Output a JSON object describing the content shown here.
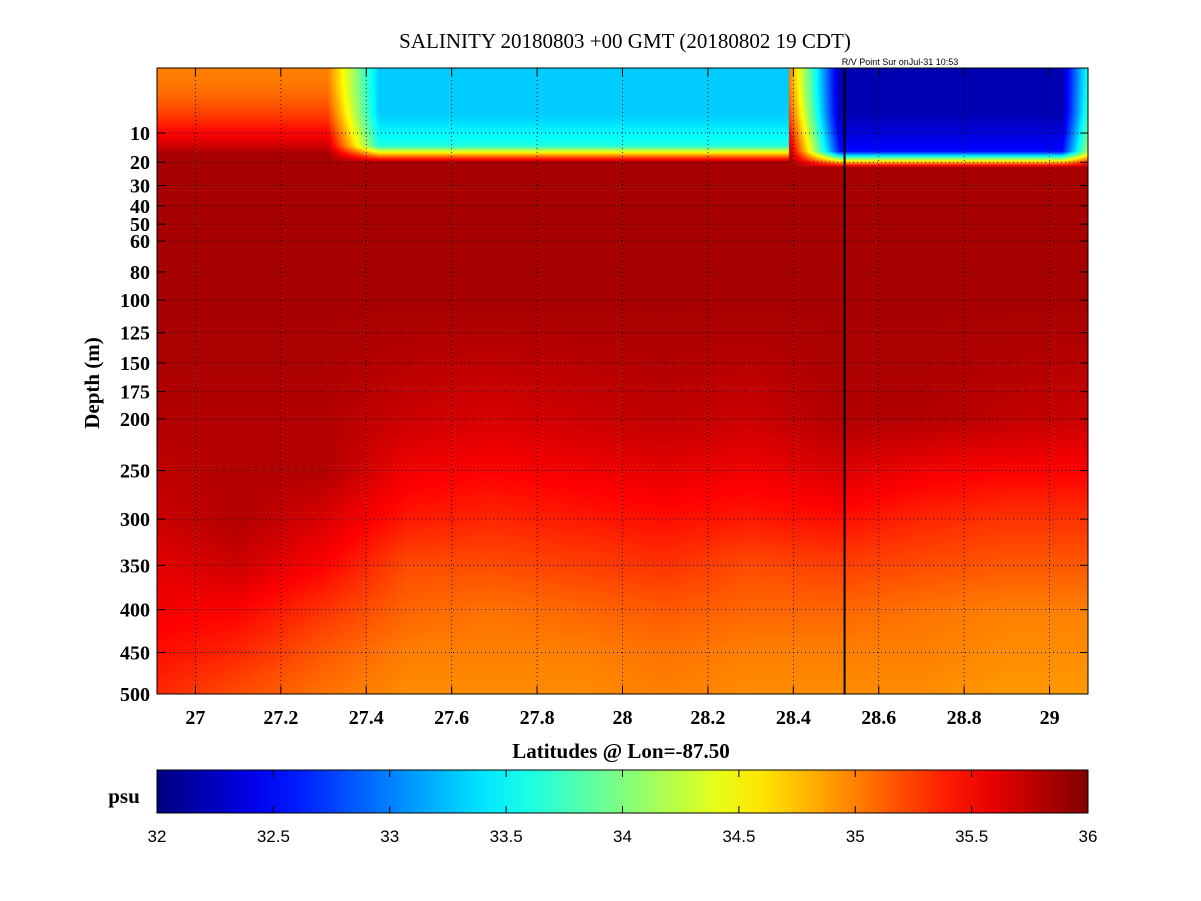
{
  "chart_data": {
    "type": "heatmap",
    "title": "SALINITY 20180803 +00 GMT (20180802 19 CDT)",
    "annotation": "R/V Point Sur onJul-31 10:53",
    "xlabel": "Latitudes @ Lon=-87.50",
    "ylabel": "Depth (m)",
    "xlim": [
      26.91,
      29.09
    ],
    "ylim": [
      0,
      500
    ],
    "x_ticks": [
      27,
      27.2,
      27.4,
      27.6,
      27.8,
      28,
      28.2,
      28.4,
      28.6,
      28.8,
      29
    ],
    "x_tick_labels": [
      "27",
      "27.2",
      "27.4",
      "27.6",
      "27.8",
      "28",
      "28.2",
      "28.4",
      "28.6",
      "28.8",
      "29"
    ],
    "y_ticks": [
      10,
      20,
      30,
      40,
      50,
      60,
      80,
      100,
      125,
      150,
      175,
      200,
      250,
      300,
      350,
      400,
      450,
      500
    ],
    "y_tick_labels": [
      "10",
      "20",
      "30",
      "40",
      "50",
      "60",
      "80",
      "100",
      "125",
      "150",
      "175",
      "200",
      "250",
      "300",
      "350",
      "400",
      "450",
      "500"
    ],
    "grid": true,
    "vertical_marker_latitude": 28.52,
    "colorbar": {
      "label": "psu",
      "range": [
        32,
        36
      ],
      "ticks": [
        32,
        32.5,
        33,
        33.5,
        34,
        34.5,
        35,
        35.5,
        36
      ],
      "tick_labels": [
        "32",
        "32.5",
        "33",
        "33.5",
        "34",
        "34.5",
        "35",
        "35.5",
        "36"
      ],
      "colormap": "jet"
    },
    "surface_fresh_layer": [
      {
        "lat_start": 27.37,
        "lat_end": 28.45,
        "min_psu": 33.3,
        "depth_m": 17
      },
      {
        "lat_start": 28.45,
        "lat_end": 29.09,
        "min_psu": 32.2,
        "depth_m": 19
      }
    ],
    "deep_field": {
      "depth_m": [
        25,
        100,
        200,
        250,
        300,
        350,
        400,
        450,
        500
      ],
      "lat": [
        26.9,
        27.1,
        27.3,
        27.5,
        27.7,
        27.9,
        28.1,
        28.3,
        28.5,
        28.7,
        28.9,
        29.1
      ],
      "psu": [
        [
          35.85,
          35.85,
          35.85,
          35.85,
          35.85,
          35.85,
          35.85,
          35.85,
          35.85,
          35.85,
          35.85,
          35.85
        ],
        [
          35.85,
          35.85,
          35.85,
          35.85,
          35.85,
          35.85,
          35.85,
          35.85,
          35.85,
          35.85,
          35.85,
          35.85
        ],
        [
          35.8,
          35.8,
          35.8,
          35.7,
          35.65,
          35.7,
          35.75,
          35.7,
          35.8,
          35.8,
          35.75,
          35.7
        ],
        [
          35.75,
          35.8,
          35.8,
          35.55,
          35.5,
          35.55,
          35.6,
          35.55,
          35.65,
          35.55,
          35.5,
          35.5
        ],
        [
          35.7,
          35.8,
          35.65,
          35.4,
          35.35,
          35.4,
          35.45,
          35.4,
          35.45,
          35.35,
          35.3,
          35.3
        ],
        [
          35.6,
          35.7,
          35.5,
          35.2,
          35.2,
          35.25,
          35.3,
          35.2,
          35.25,
          35.2,
          35.15,
          35.15
        ],
        [
          35.55,
          35.5,
          35.3,
          35.1,
          35.05,
          35.1,
          35.15,
          35.1,
          35.1,
          35.05,
          35.0,
          35.0
        ],
        [
          35.45,
          35.35,
          35.15,
          35.0,
          35.0,
          35.0,
          35.05,
          35.0,
          35.0,
          35.0,
          34.95,
          34.95
        ],
        [
          35.35,
          35.2,
          35.05,
          34.95,
          34.95,
          34.95,
          35.0,
          34.95,
          34.95,
          34.95,
          34.9,
          34.9
        ]
      ]
    }
  }
}
